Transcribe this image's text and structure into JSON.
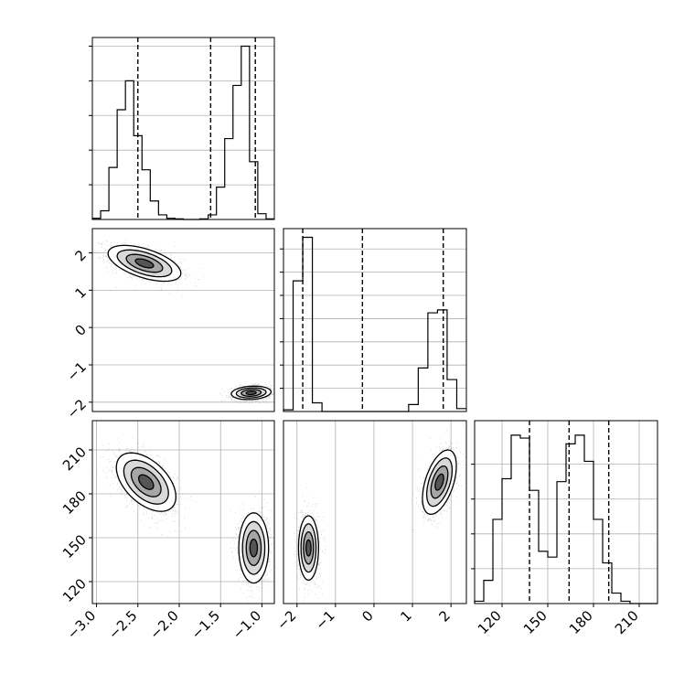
{
  "figure": {
    "kind": "corner plot"
  },
  "chart_data": [
    {
      "panel": "hist-1",
      "type": "histogram",
      "variable": 1,
      "bins": [
        -3.05,
        -2.95,
        -2.85,
        -2.75,
        -2.65,
        -2.55,
        -2.45,
        -2.35,
        -2.25,
        -2.15,
        -2.05,
        -1.95,
        -1.85,
        -1.75,
        -1.65,
        -1.55,
        -1.45,
        -1.35,
        -1.25,
        -1.15,
        -1.05,
        -0.95,
        -0.85
      ],
      "counts": [
        2,
        15,
        90,
        190,
        240,
        145,
        86,
        32,
        8,
        2,
        1,
        0,
        0,
        1,
        8,
        56,
        140,
        232,
        300,
        100,
        10,
        1
      ],
      "quantiles": [
        -2.5,
        -1.62,
        -1.08
      ],
      "xlim": [
        -3.05,
        -0.85
      ],
      "ylim": [
        0,
        315
      ],
      "yticks": [
        60,
        120,
        180,
        240,
        300
      ],
      "grid": true
    },
    {
      "panel": "hist-2",
      "type": "histogram",
      "variable": 2,
      "bins": [
        -2.35,
        -2.1,
        -1.85,
        -1.6,
        -1.35,
        -1.1,
        -0.85,
        -0.6,
        -0.35,
        -0.1,
        0.15,
        0.4,
        0.65,
        0.9,
        1.15,
        1.4,
        1.65,
        1.9,
        2.15,
        2.4
      ],
      "counts": [
        3,
        225,
        300,
        15,
        0,
        0,
        0,
        0,
        0,
        0,
        0,
        0,
        0,
        12,
        75,
        170,
        175,
        55,
        5
      ],
      "quantiles": [
        -1.85,
        -0.3,
        1.8
      ],
      "xlim": [
        -2.35,
        2.4
      ],
      "ylim": [
        0,
        315
      ],
      "yticks": [
        40,
        80,
        120,
        160,
        200,
        240,
        280
      ],
      "grid": true
    },
    {
      "panel": "hist-3",
      "type": "histogram",
      "variable": 3,
      "bins": [
        102,
        108,
        114,
        120,
        126,
        132,
        138,
        144,
        150,
        156,
        162,
        168,
        174,
        180,
        186,
        192,
        198,
        204,
        210,
        216,
        222
      ],
      "counts": [
        4,
        40,
        145,
        215,
        290,
        285,
        195,
        90,
        80,
        210,
        275,
        290,
        245,
        145,
        70,
        18,
        4,
        0,
        0,
        0
      ],
      "quantiles": [
        138,
        164,
        190
      ],
      "xlim": [
        102,
        222
      ],
      "ylim": [
        0,
        315
      ],
      "xticks": [
        120,
        150,
        180,
        210
      ],
      "yticks": [
        60,
        120,
        180,
        240
      ],
      "grid": true
    },
    {
      "panel": "scatter-2-vs-1",
      "type": "scatter-contour",
      "xlim": [
        -3.05,
        -0.85
      ],
      "ylim": [
        -2.25,
        2.65
      ],
      "yticks": [
        -2,
        -1,
        0,
        1,
        2
      ],
      "clusters": [
        {
          "center": [
            -2.42,
            1.72
          ],
          "spread": [
            0.22,
            0.24
          ],
          "rho": -0.55,
          "n": 1500
        },
        {
          "center": [
            -1.13,
            -1.75
          ],
          "spread": [
            0.12,
            0.09
          ],
          "rho": 0.15,
          "n": 1500
        }
      ],
      "grid": true
    },
    {
      "panel": "scatter-3-vs-1",
      "type": "scatter-contour",
      "xlim": [
        -3.05,
        -0.85
      ],
      "ylim": [
        105,
        230
      ],
      "xticks": [
        -3.0,
        -2.5,
        -2.0,
        -1.5,
        -1.0
      ],
      "yticks": [
        120,
        150,
        180,
        210
      ],
      "clusters": [
        {
          "center": [
            -2.4,
            188
          ],
          "spread": [
            0.18,
            10
          ],
          "rho": -0.5,
          "n": 1500
        },
        {
          "center": [
            -1.1,
            143
          ],
          "spread": [
            0.09,
            12
          ],
          "rho": 0.0,
          "n": 1500
        }
      ],
      "grid": true
    },
    {
      "panel": "scatter-3-vs-2",
      "type": "scatter-contour",
      "xlim": [
        -2.35,
        2.4
      ],
      "ylim": [
        105,
        230
      ],
      "xticks": [
        -2,
        -1,
        0,
        1,
        2
      ],
      "clusters": [
        {
          "center": [
            -1.7,
            143
          ],
          "spread": [
            0.13,
            11
          ],
          "rho": 0.0,
          "n": 1500
        },
        {
          "center": [
            1.7,
            188
          ],
          "spread": [
            0.22,
            11
          ],
          "rho": 0.5,
          "n": 1500
        }
      ],
      "grid": true
    }
  ]
}
